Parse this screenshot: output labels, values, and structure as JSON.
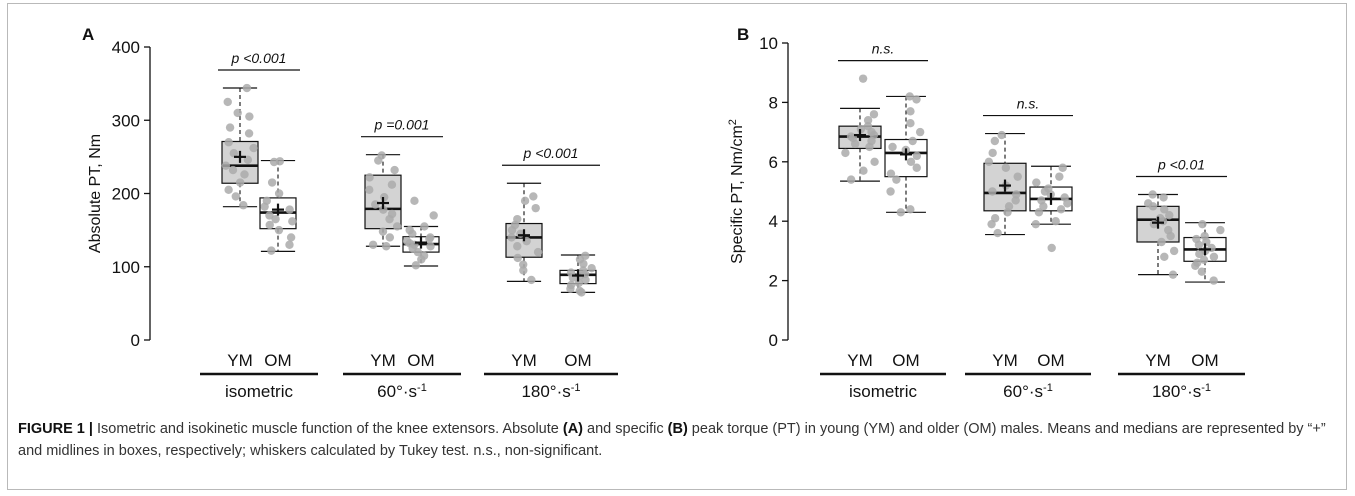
{
  "chart_data": [
    {
      "type": "box",
      "panel_label": "A",
      "ylabel": "Absolute PT, Nm",
      "ylim": [
        0,
        400
      ],
      "yticks": [
        "0",
        "100",
        "200",
        "300",
        "400"
      ],
      "x_sublabels": [
        "YM",
        "OM"
      ],
      "groups": [
        {
          "label": "isometric",
          "significance": "p <0.001",
          "boxes": [
            {
              "name": "YM",
              "fill": "#d3d3d3",
              "whisker_low": 182,
              "q1": 214,
              "median": 238,
              "q3": 271,
              "whisker_high": 344,
              "mean": 250,
              "points": [
                344,
                325,
                310,
                305,
                290,
                282,
                270,
                262,
                255,
                246,
                238,
                232,
                226,
                215,
                205,
                196,
                184
              ]
            },
            {
              "name": "OM",
              "fill": "#ffffff",
              "whisker_low": 121,
              "q1": 152,
              "median": 174,
              "q3": 194,
              "whisker_high": 245,
              "mean": 178,
              "points": [
                244,
                243,
                215,
                200,
                190,
                182,
                178,
                170,
                165,
                162,
                157,
                150,
                140,
                130,
                122
              ]
            }
          ]
        },
        {
          "label": "60°·s-1",
          "significance": "p =0.001",
          "boxes": [
            {
              "name": "YM",
              "fill": "#d3d3d3",
              "whisker_low": 128,
              "q1": 152,
              "median": 179,
              "q3": 225,
              "whisker_high": 253,
              "mean": 187,
              "points": [
                252,
                245,
                232,
                222,
                212,
                205,
                195,
                185,
                178,
                172,
                165,
                155,
                148,
                140,
                130,
                128
              ]
            },
            {
              "name": "OM",
              "fill": "#ffffff",
              "whisker_low": 101,
              "q1": 120,
              "median": 131,
              "q3": 141,
              "whisker_high": 155,
              "mean": 133,
              "points": [
                190,
                170,
                155,
                150,
                145,
                140,
                138,
                135,
                132,
                130,
                128,
                125,
                120,
                115,
                110,
                102
              ]
            }
          ]
        },
        {
          "label": "180°·s-1",
          "significance": "p <0.001",
          "boxes": [
            {
              "name": "YM",
              "fill": "#d3d3d3",
              "whisker_low": 80,
              "q1": 113,
              "median": 140,
              "q3": 159,
              "whisker_high": 214,
              "mean": 143,
              "points": [
                196,
                190,
                180,
                165,
                157,
                150,
                145,
                140,
                135,
                128,
                120,
                112,
                103,
                95,
                82
              ]
            },
            {
              "name": "OM",
              "fill": "#ffffff",
              "whisker_low": 65,
              "q1": 77,
              "median": 89,
              "q3": 95,
              "whisker_high": 116,
              "mean": 88,
              "points": [
                115,
                110,
                104,
                98,
                95,
                92,
                90,
                88,
                85,
                82,
                78,
                75,
                70,
                67,
                65
              ]
            }
          ]
        }
      ]
    },
    {
      "type": "box",
      "panel_label": "B",
      "ylabel": "Specific PT, Nm/cm",
      "ylabel_sup": "2",
      "ylim": [
        0,
        10
      ],
      "yticks": [
        "0",
        "2",
        "4",
        "6",
        "8",
        "10"
      ],
      "x_sublabels": [
        "YM",
        "OM"
      ],
      "groups": [
        {
          "label": "isometric",
          "significance": "n.s.",
          "boxes": [
            {
              "name": "YM",
              "fill": "#d3d3d3",
              "whisker_low": 5.35,
              "q1": 6.45,
              "median": 6.85,
              "q3": 7.2,
              "whisker_high": 7.8,
              "mean": 6.9,
              "points": [
                8.8,
                7.6,
                7.4,
                7.2,
                7.1,
                7.0,
                6.9,
                6.85,
                6.8,
                6.7,
                6.6,
                6.5,
                6.3,
                6.0,
                5.7,
                5.4
              ]
            },
            {
              "name": "OM",
              "fill": "#ffffff",
              "whisker_low": 4.3,
              "q1": 5.5,
              "median": 6.3,
              "q3": 6.75,
              "whisker_high": 8.2,
              "mean": 6.25,
              "points": [
                8.2,
                8.1,
                7.7,
                7.3,
                7.0,
                6.7,
                6.5,
                6.4,
                6.2,
                6.0,
                5.8,
                5.6,
                5.4,
                5.0,
                4.4,
                4.3
              ]
            }
          ]
        },
        {
          "label": "60°·s-1",
          "significance": "n.s.",
          "boxes": [
            {
              "name": "YM",
              "fill": "#d3d3d3",
              "whisker_low": 3.55,
              "q1": 4.35,
              "median": 4.95,
              "q3": 5.95,
              "whisker_high": 6.95,
              "mean": 5.2,
              "points": [
                6.9,
                6.7,
                6.3,
                6.0,
                5.8,
                5.5,
                5.2,
                5.0,
                4.9,
                4.7,
                4.5,
                4.3,
                4.1,
                3.9,
                3.6
              ]
            },
            {
              "name": "OM",
              "fill": "#ffffff",
              "whisker_low": 3.9,
              "q1": 4.35,
              "median": 4.75,
              "q3": 5.15,
              "whisker_high": 5.85,
              "mean": 4.75,
              "points": [
                5.8,
                5.5,
                5.3,
                5.1,
                5.0,
                4.9,
                4.8,
                4.7,
                4.6,
                4.5,
                4.4,
                4.3,
                4.0,
                3.9,
                3.1
              ]
            }
          ]
        },
        {
          "label": "180°·s-1",
          "significance": "p <0.01",
          "boxes": [
            {
              "name": "YM",
              "fill": "#d3d3d3",
              "whisker_low": 2.2,
              "q1": 3.3,
              "median": 4.05,
              "q3": 4.5,
              "whisker_high": 4.9,
              "mean": 3.95,
              "points": [
                4.9,
                4.8,
                4.6,
                4.5,
                4.4,
                4.2,
                4.1,
                4.0,
                3.9,
                3.7,
                3.5,
                3.3,
                3.0,
                2.8,
                2.2
              ]
            },
            {
              "name": "OM",
              "fill": "#ffffff",
              "whisker_low": 1.95,
              "q1": 2.65,
              "median": 3.05,
              "q3": 3.45,
              "whisker_high": 3.95,
              "mean": 3.05,
              "points": [
                3.9,
                3.7,
                3.5,
                3.4,
                3.3,
                3.2,
                3.1,
                3.0,
                2.9,
                2.8,
                2.7,
                2.6,
                2.5,
                2.3,
                2.0
              ]
            }
          ]
        }
      ]
    }
  ],
  "caption": {
    "figure_label": "FIGURE 1 |",
    "parts": [
      {
        "text": " Isometric and isokinetic muscle function of the knee extensors. Absolute ",
        "bold": false
      },
      {
        "text": "(A)",
        "bold": true
      },
      {
        "text": " and specific ",
        "bold": false
      },
      {
        "text": "(B)",
        "bold": true
      },
      {
        "text": " peak torque (PT) in young (YM) and older (OM) males. Means and medians are represented by “+” and midlines in boxes, respectively; whiskers calculated by Tukey test. n.s., non-significant.",
        "bold": false
      }
    ]
  },
  "colors": {
    "young_fill": "#d3d3d3",
    "old_fill": "#ffffff",
    "points": "#aaaaaa",
    "stroke": "#111111"
  }
}
